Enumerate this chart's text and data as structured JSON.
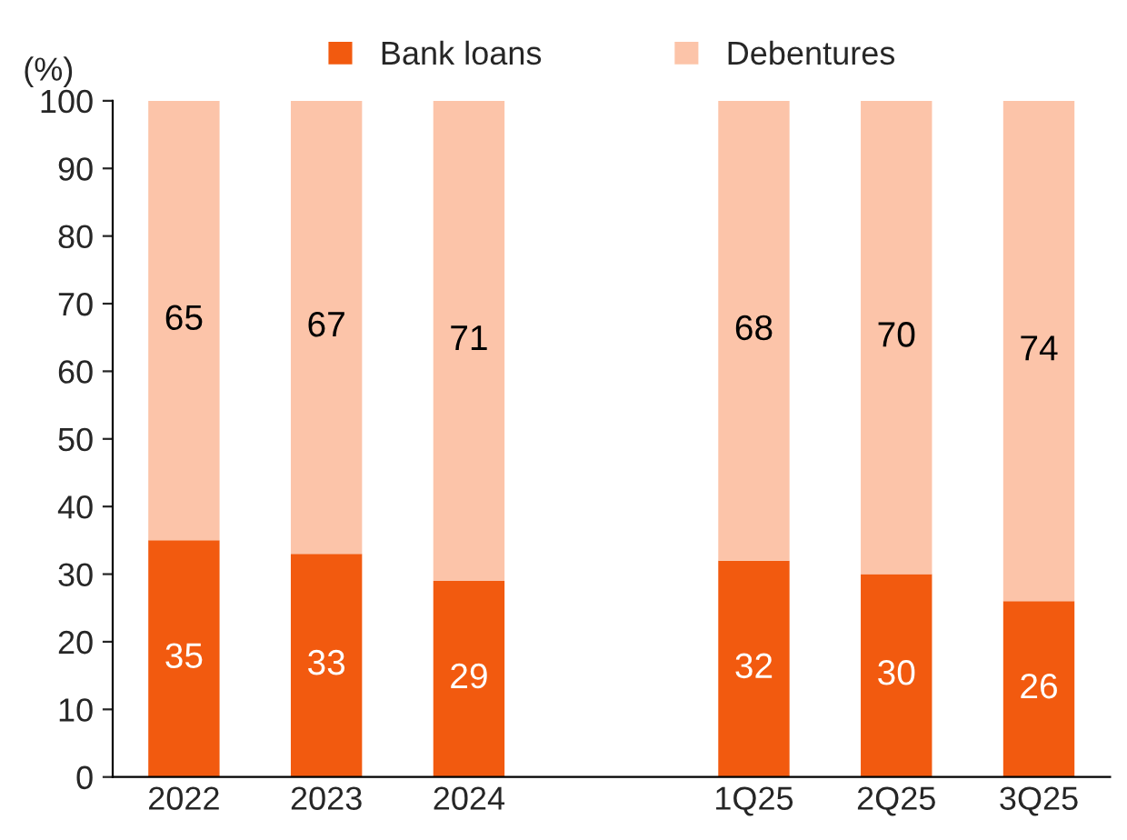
{
  "chart_data": {
    "type": "bar",
    "stacked": true,
    "ylabel": "(%)",
    "categories": [
      "2022",
      "2023",
      "2024",
      null,
      "1Q25",
      "2Q25",
      "3Q25"
    ],
    "series": [
      {
        "name": "Bank loans",
        "color": "#f25a0f",
        "values": [
          35,
          33,
          29,
          null,
          32,
          30,
          26
        ]
      },
      {
        "name": "Debentures",
        "color": "#fcc4a9",
        "values": [
          65,
          67,
          71,
          null,
          68,
          70,
          74
        ]
      }
    ],
    "ylim": [
      0,
      100
    ],
    "yticks": [
      0,
      10,
      20,
      30,
      40,
      50,
      60,
      70,
      80,
      90,
      100
    ],
    "data_labels": true,
    "legend": "top",
    "grid": false
  }
}
